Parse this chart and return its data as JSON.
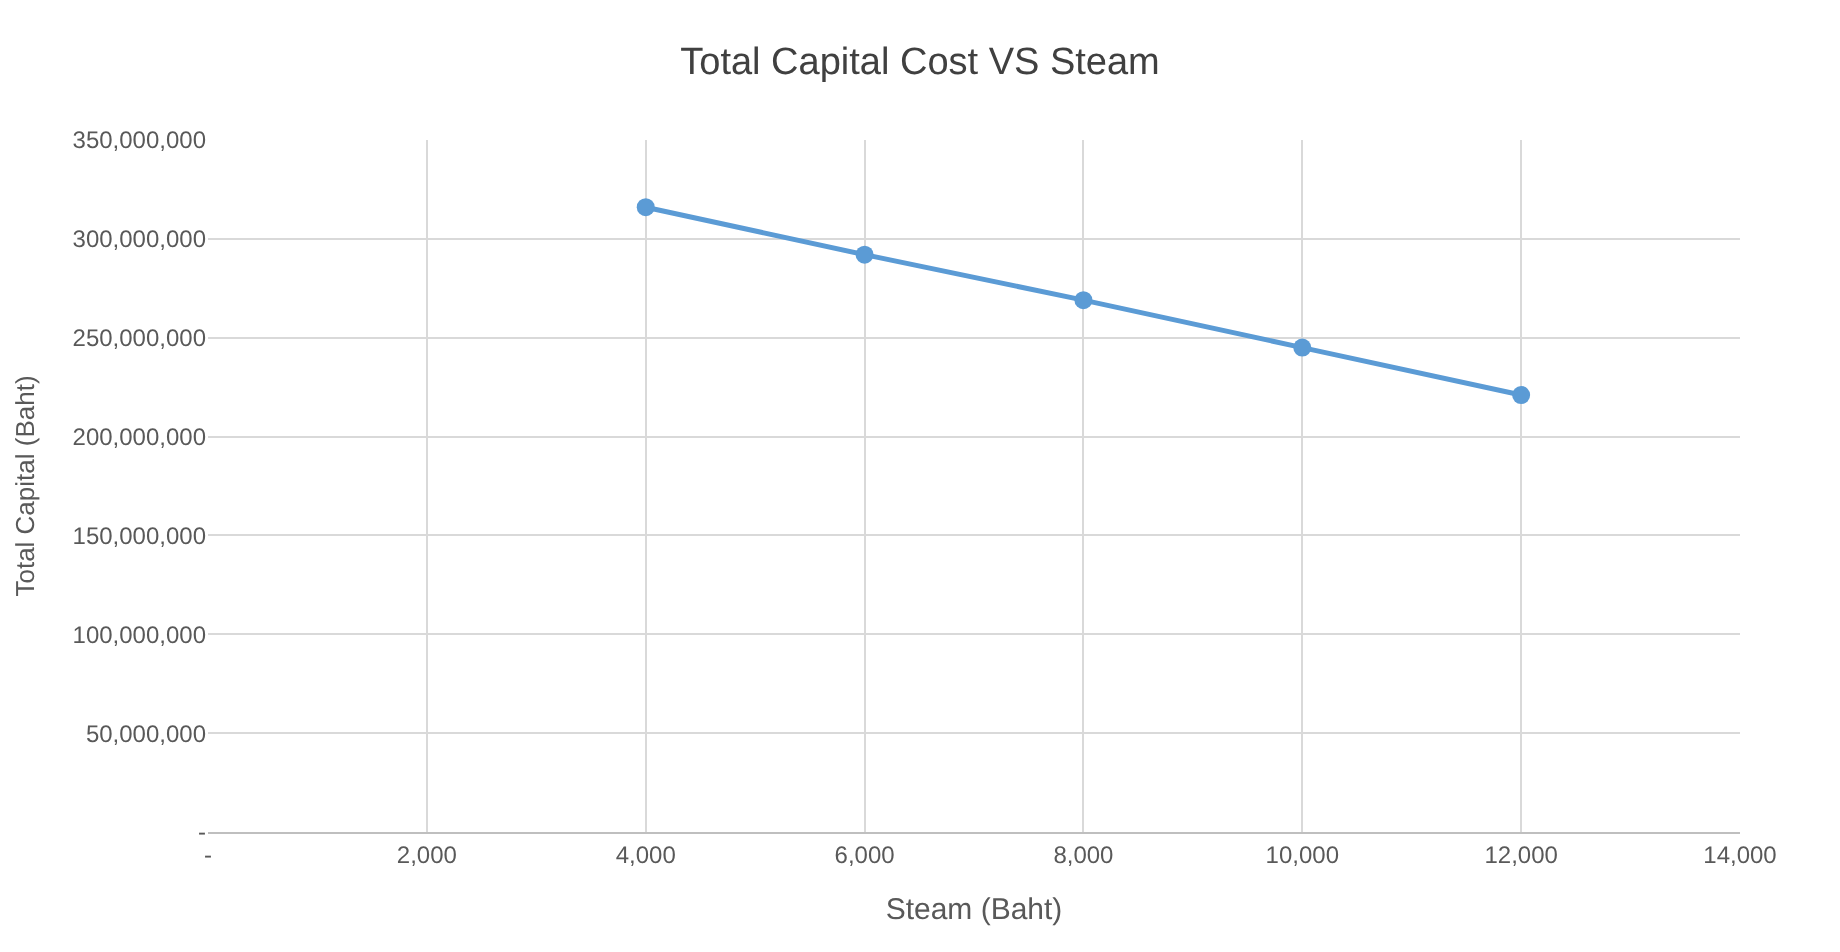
{
  "chart_data": {
    "type": "line",
    "title": "Total Capital Cost VS Steam",
    "xlabel": "Steam (Baht)",
    "ylabel": "Total Capital (Baht)",
    "x": [
      4000,
      6000,
      8000,
      10000,
      12000
    ],
    "series": [
      {
        "color": "#5b9bd5",
        "values": [
          316000000,
          292000000,
          269000000,
          245000000,
          221000000
        ]
      }
    ],
    "xlim": [
      0,
      14000
    ],
    "xticks": [
      {
        "value": 0,
        "label": "-"
      },
      {
        "value": 2000,
        "label": "2,000"
      },
      {
        "value": 4000,
        "label": "4,000"
      },
      {
        "value": 6000,
        "label": "6,000"
      },
      {
        "value": 8000,
        "label": "8,000"
      },
      {
        "value": 10000,
        "label": "10,000"
      },
      {
        "value": 12000,
        "label": "12,000"
      },
      {
        "value": 14000,
        "label": "14,000"
      }
    ],
    "ylim": [
      0,
      350000000
    ],
    "yticks": [
      {
        "value": 0,
        "label": "-"
      },
      {
        "value": 50000000,
        "label": "50,000,000"
      },
      {
        "value": 100000000,
        "label": "100,000,000"
      },
      {
        "value": 150000000,
        "label": "150,000,000"
      },
      {
        "value": 200000000,
        "label": "200,000,000"
      },
      {
        "value": 250000000,
        "label": "250,000,000"
      },
      {
        "value": 300000000,
        "label": "300,000,000"
      },
      {
        "value": 350000000,
        "label": "350,000,000"
      }
    ],
    "grid": true,
    "marker": "circle",
    "line_style": "solid",
    "legend": false
  }
}
